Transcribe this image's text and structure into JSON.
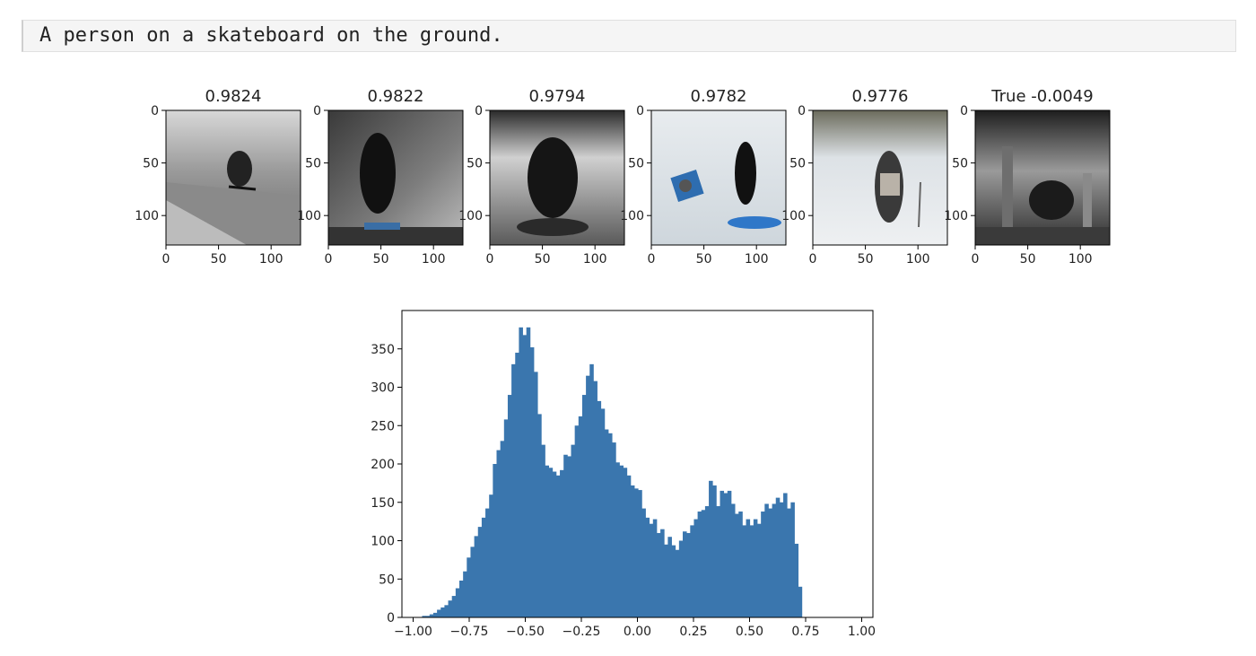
{
  "cell_output": {
    "text": "A person on a skateboard on the ground."
  },
  "image_grid": {
    "tick_labels": [
      "0",
      "50",
      "100"
    ],
    "panels": [
      {
        "title": "0.9824",
        "image": "skateboarder jumping over ramp, grayscale"
      },
      {
        "title": "0.9822",
        "image": "skateboarder on dark bowl wall"
      },
      {
        "title": "0.9794",
        "image": "silhouette of skateboarder in bowl"
      },
      {
        "title": "0.9782",
        "image": "person with blue flag on snow"
      },
      {
        "title": "0.9776",
        "image": "person walking on snowy path"
      },
      {
        "title": "True -0.0049",
        "image": "skateboarder under concrete bridge"
      }
    ]
  },
  "chart_data": {
    "type": "bar",
    "title": "",
    "xlabel": "",
    "ylabel": "",
    "xlim": [
      -1.05,
      1.05
    ],
    "ylim": [
      0,
      400
    ],
    "grid": false,
    "bar_color": "#3a76ae",
    "x_ticks": [
      "−1.00",
      "−0.75",
      "−0.50",
      "−0.25",
      "0.00",
      "0.25",
      "0.50",
      "0.75",
      "1.00"
    ],
    "y_ticks": [
      "0",
      "50",
      "100",
      "150",
      "200",
      "250",
      "300",
      "350"
    ],
    "bin_start": -0.96,
    "bin_width": 0.0166,
    "values": [
      2,
      2,
      4,
      6,
      10,
      13,
      16,
      22,
      28,
      38,
      48,
      60,
      78,
      92,
      106,
      118,
      130,
      142,
      160,
      200,
      218,
      230,
      258,
      290,
      330,
      345,
      378,
      368,
      378,
      352,
      320,
      265,
      225,
      198,
      195,
      190,
      185,
      192,
      212,
      210,
      225,
      250,
      262,
      290,
      315,
      330,
      308,
      282,
      272,
      245,
      240,
      228,
      202,
      198,
      195,
      185,
      172,
      168,
      166,
      142,
      130,
      122,
      128,
      110,
      115,
      95,
      105,
      94,
      88,
      100,
      112,
      110,
      120,
      128,
      138,
      140,
      145,
      178,
      172,
      145,
      165,
      162,
      165,
      148,
      135,
      138,
      120,
      128,
      120,
      128,
      122,
      138,
      148,
      142,
      148,
      156,
      150,
      162,
      142,
      150,
      96,
      40
    ]
  }
}
